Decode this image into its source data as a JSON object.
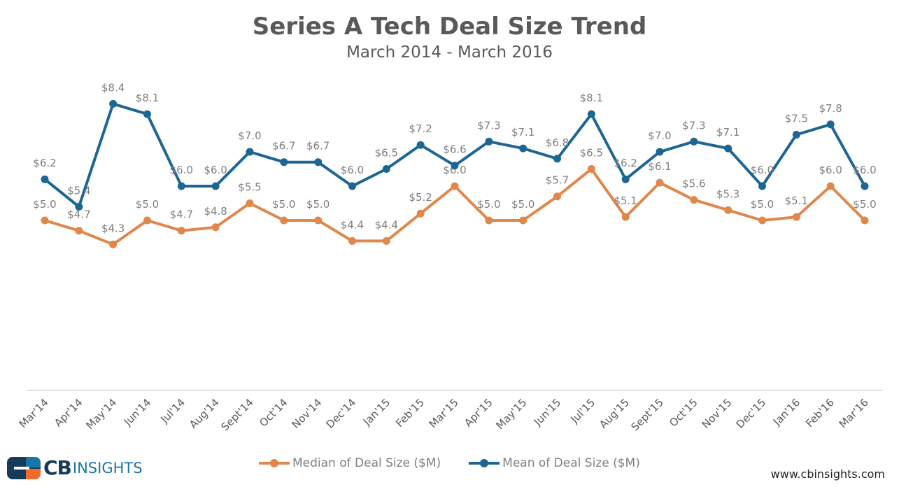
{
  "chart_data": {
    "type": "line",
    "title": "Series A Tech Deal Size Trend",
    "subtitle": "March 2014 - March 2016",
    "categories": [
      "Mar'14",
      "Apr'14",
      "May'14",
      "Jun'14",
      "Jul'14",
      "Aug'14",
      "Sept'14",
      "Oct'14",
      "Nov'14",
      "Dec'14",
      "Jan'15",
      "Feb'15",
      "Mar'15",
      "Apr'15",
      "May'15",
      "Jun'15",
      "Jul'15",
      "Aug'15",
      "Sept'15",
      "Oct'15",
      "Nov'15",
      "Dec'15",
      "Jan'16",
      "Feb'16",
      "Mar'16"
    ],
    "series": [
      {
        "name": "Median of Deal Size ($M)",
        "color": "#e0874b",
        "values": [
          5.0,
          4.7,
          4.3,
          5.0,
          4.7,
          4.8,
          5.5,
          5.0,
          5.0,
          4.4,
          4.4,
          5.2,
          6.0,
          5.0,
          5.0,
          5.7,
          6.5,
          5.1,
          6.1,
          5.6,
          5.3,
          5.0,
          5.1,
          6.0,
          5.0
        ]
      },
      {
        "name": "Mean of Deal Size ($M)",
        "color": "#1c6694",
        "values": [
          6.2,
          5.4,
          8.4,
          8.1,
          6.0,
          6.0,
          7.0,
          6.7,
          6.7,
          6.0,
          6.5,
          7.2,
          6.6,
          7.3,
          7.1,
          6.8,
          8.1,
          6.2,
          7.0,
          7.3,
          7.1,
          6.0,
          7.5,
          7.8,
          6.0
        ]
      }
    ],
    "label_prefix": "$",
    "ylim": [
      0,
      10
    ],
    "grid": false,
    "legend_position": "bottom"
  },
  "branding": {
    "logo_text": "CB INSIGHTS",
    "logo_cb": "CB",
    "logo_insights": "INSIGHTS",
    "url": "www.cbinsights.com"
  }
}
